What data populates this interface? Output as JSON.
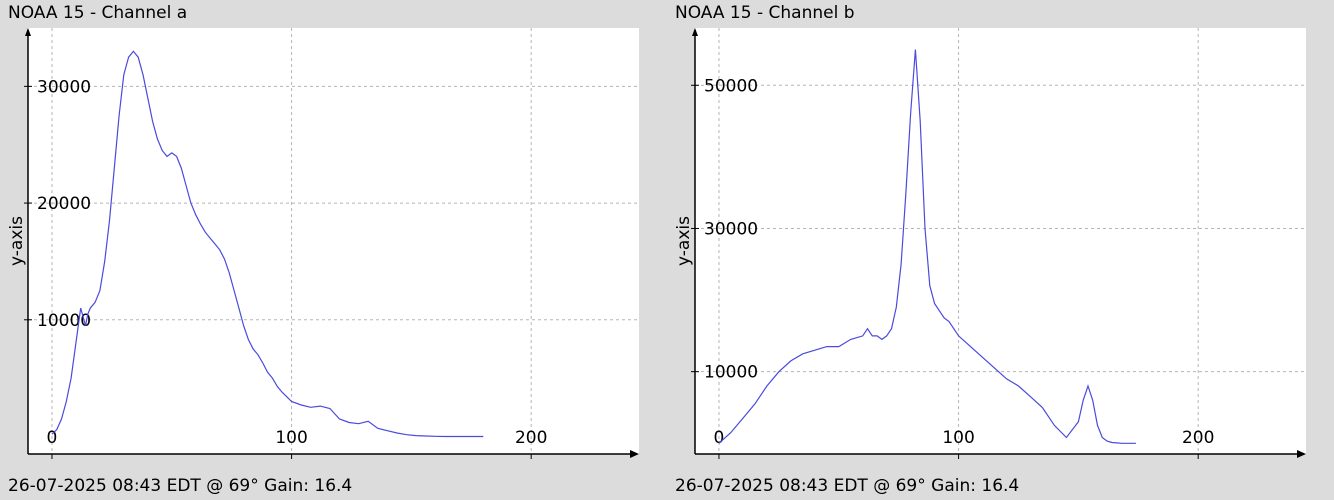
{
  "panels": [
    {
      "title": "NOAA 15 - Channel a",
      "footer": "26-07-2025 08:43 EDT @ 69° Gain: 16.4"
    },
    {
      "title": "NOAA 15 - Channel b",
      "footer": "26-07-2025 08:43 EDT @ 69° Gain: 16.4"
    }
  ],
  "chart_data": [
    {
      "type": "line",
      "title": "NOAA 15 - Channel a",
      "ylabel": "y-axis",
      "xlabel": "",
      "xlim": [
        -10,
        245
      ],
      "ylim": [
        -1500,
        35000
      ],
      "x_ticks": [
        0,
        100,
        200
      ],
      "y_ticks": [
        10000,
        20000,
        30000
      ],
      "grid": true,
      "line_color": "#4a4adf",
      "series": [
        {
          "x": [
            0,
            2,
            4,
            6,
            8,
            10,
            12,
            14,
            15,
            16,
            18,
            20,
            22,
            24,
            26,
            28,
            30,
            32,
            34,
            36,
            38,
            40,
            42,
            44,
            46,
            48,
            50,
            52,
            54,
            56,
            58,
            60,
            62,
            64,
            66,
            68,
            70,
            72,
            74,
            76,
            78,
            80,
            82,
            84,
            86,
            88,
            90,
            92,
            94,
            96,
            98,
            100,
            104,
            108,
            112,
            116,
            120,
            124,
            128,
            132,
            136,
            140,
            144,
            148,
            152,
            156,
            160,
            164,
            168,
            172,
            176,
            180
          ],
          "y": [
            200,
            600,
            1500,
            3000,
            5000,
            8000,
            11000,
            9500,
            10500,
            11000,
            11500,
            12500,
            15000,
            18500,
            23000,
            27500,
            31000,
            32500,
            33000,
            32500,
            31000,
            29000,
            27000,
            25500,
            24500,
            24000,
            24300,
            24000,
            23000,
            21500,
            20000,
            19000,
            18200,
            17500,
            17000,
            16500,
            16000,
            15200,
            14000,
            12500,
            11000,
            9500,
            8300,
            7500,
            7000,
            6300,
            5500,
            5000,
            4300,
            3800,
            3400,
            3000,
            2700,
            2500,
            2600,
            2400,
            1500,
            1200,
            1100,
            1300,
            700,
            500,
            300,
            150,
            80,
            40,
            20,
            0,
            0,
            0,
            0,
            0
          ]
        }
      ]
    },
    {
      "type": "line",
      "title": "NOAA 15 - Channel b",
      "ylabel": "y-axis",
      "xlabel": "",
      "xlim": [
        -10,
        245
      ],
      "ylim": [
        -1500,
        58000
      ],
      "x_ticks": [
        0,
        100,
        200
      ],
      "y_ticks": [
        10000,
        30000,
        50000
      ],
      "grid": true,
      "line_color": "#4a4adf",
      "series": [
        {
          "x": [
            0,
            5,
            10,
            15,
            20,
            25,
            30,
            35,
            40,
            45,
            50,
            55,
            60,
            62,
            64,
            66,
            68,
            70,
            72,
            74,
            76,
            78,
            80,
            82,
            84,
            86,
            88,
            90,
            92,
            94,
            96,
            98,
            100,
            105,
            110,
            115,
            120,
            125,
            130,
            135,
            140,
            145,
            150,
            152,
            154,
            156,
            158,
            160,
            162,
            164,
            166,
            168,
            170,
            172,
            174
          ],
          "y": [
            0,
            1500,
            3500,
            5500,
            8000,
            10000,
            11500,
            12500,
            13000,
            13500,
            13500,
            14500,
            15000,
            16000,
            15000,
            15000,
            14500,
            15000,
            16000,
            19000,
            25000,
            35000,
            46000,
            55000,
            45000,
            30000,
            22000,
            19500,
            18500,
            17500,
            17000,
            16000,
            15000,
            13500,
            12000,
            10500,
            9000,
            8000,
            6500,
            5000,
            2500,
            800,
            3000,
            6000,
            8000,
            6000,
            2500,
            800,
            300,
            100,
            50,
            0,
            0,
            0,
            0
          ]
        }
      ]
    }
  ]
}
